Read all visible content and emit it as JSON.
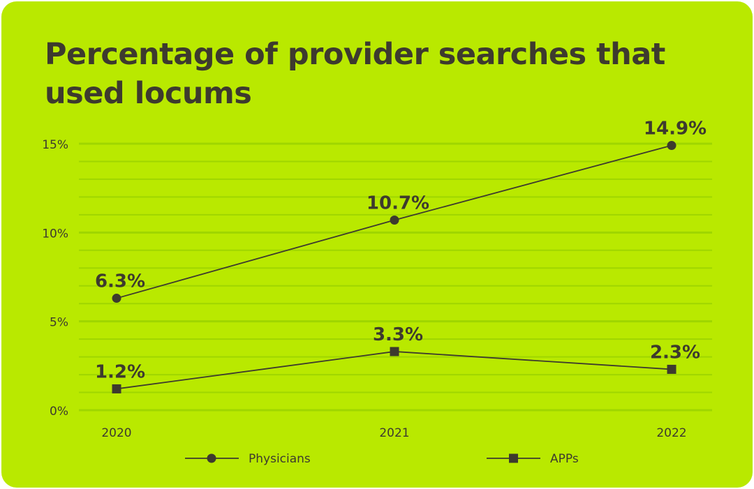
{
  "chart_data": {
    "type": "line",
    "title": "Percentage of provider searches that used locums",
    "xlabel": "",
    "ylabel": "",
    "categories": [
      "2020",
      "2021",
      "2022"
    ],
    "series": [
      {
        "name": "Physicians",
        "marker": "circle",
        "values": [
          6.3,
          10.7,
          14.9
        ],
        "labels": [
          "6.3%",
          "10.7%",
          "14.9%"
        ]
      },
      {
        "name": "APPs",
        "marker": "square",
        "values": [
          1.2,
          3.3,
          2.3
        ],
        "labels": [
          "1.2%",
          "3.3%",
          "2.3%"
        ]
      }
    ],
    "ylim": [
      0,
      15
    ],
    "yticks": [
      0,
      5,
      10,
      15
    ],
    "ytick_labels": [
      "0%",
      "5%",
      "10%",
      "15%"
    ],
    "minor_grid_step": 1,
    "grid": true,
    "legend_position": "bottom",
    "colors": {
      "background": "#b9e900",
      "text": "#3d3a2e",
      "grid": "#9fd600",
      "line": "#3d3a2e"
    }
  }
}
